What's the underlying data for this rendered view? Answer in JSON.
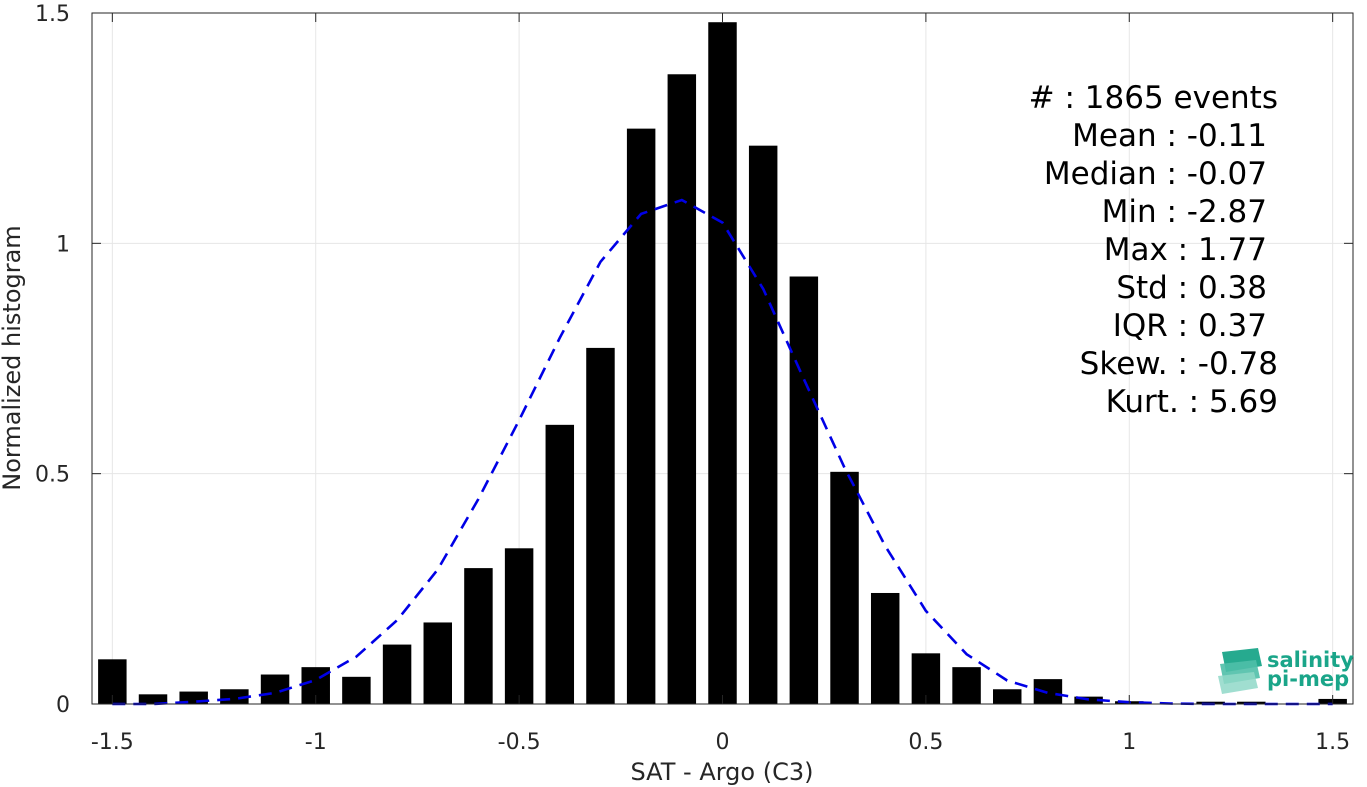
{
  "chart_data": {
    "type": "bar",
    "xlabel": "SAT - Argo (C3)",
    "ylabel": "Normalized histogram",
    "xlim": [
      -1.55,
      1.55
    ],
    "ylim": [
      0,
      1.5
    ],
    "xticks": [
      -1.5,
      -1,
      -0.5,
      0,
      0.5,
      1,
      1.5
    ],
    "xtick_labels": [
      "-1.5",
      "-1",
      "-0.5",
      "0",
      "0.5",
      "1",
      "1.5"
    ],
    "yticks": [
      0,
      0.5,
      1,
      1.5
    ],
    "ytick_labels": [
      "0",
      "0.5",
      "1",
      "1.5"
    ],
    "grid": true,
    "bar_color": "#000000",
    "fit_color": "#0000e6",
    "bins": {
      "centers": [
        -1.5,
        -1.4,
        -1.3,
        -1.2,
        -1.1,
        -1.0,
        -0.9,
        -0.8,
        -0.7,
        -0.6,
        -0.5,
        -0.4,
        -0.3,
        -0.2,
        -0.1,
        0.0,
        0.1,
        0.2,
        0.3,
        0.4,
        0.5,
        0.6,
        0.7,
        0.8,
        0.9,
        1.0,
        1.1,
        1.2,
        1.3,
        1.4,
        1.5
      ],
      "values": [
        0.097,
        0.021,
        0.027,
        0.032,
        0.064,
        0.08,
        0.059,
        0.129,
        0.177,
        0.295,
        0.338,
        0.606,
        0.773,
        1.249,
        1.367,
        1.48,
        1.212,
        0.928,
        0.504,
        0.241,
        0.11,
        0.08,
        0.032,
        0.054,
        0.016,
        0.006,
        0.0,
        0.005,
        0.005,
        0.0,
        0.011
      ]
    },
    "fit_curve": {
      "style": "dashed",
      "x": [
        -1.5,
        -1.4,
        -1.3,
        -1.2,
        -1.1,
        -1.0,
        -0.9,
        -0.8,
        -0.7,
        -0.6,
        -0.5,
        -0.4,
        -0.3,
        -0.2,
        -0.1,
        0.0,
        0.1,
        0.2,
        0.3,
        0.4,
        0.5,
        0.6,
        0.7,
        0.8,
        0.9,
        1.0,
        1.1,
        1.2,
        1.3,
        1.4,
        1.5
      ],
      "y": [
        0.0,
        0.0,
        0.005,
        0.011,
        0.024,
        0.052,
        0.103,
        0.182,
        0.292,
        0.445,
        0.616,
        0.795,
        0.96,
        1.064,
        1.094,
        1.045,
        0.901,
        0.705,
        0.513,
        0.343,
        0.202,
        0.108,
        0.051,
        0.024,
        0.01,
        0.004,
        0.001,
        0.0,
        0.0,
        0.0,
        0.0
      ]
    },
    "stats": [
      "#  : 1865 events",
      "Mean : -0.11",
      "Median : -0.07",
      "Min : -2.87",
      "Max : 1.77",
      "Std : 0.38",
      "IQR : 0.37",
      "Skew. : -0.78",
      "Kurt. : 5.69"
    ]
  },
  "logo": {
    "line1": "salinity",
    "line2": "pi-mep",
    "color": "#1aa589"
  }
}
